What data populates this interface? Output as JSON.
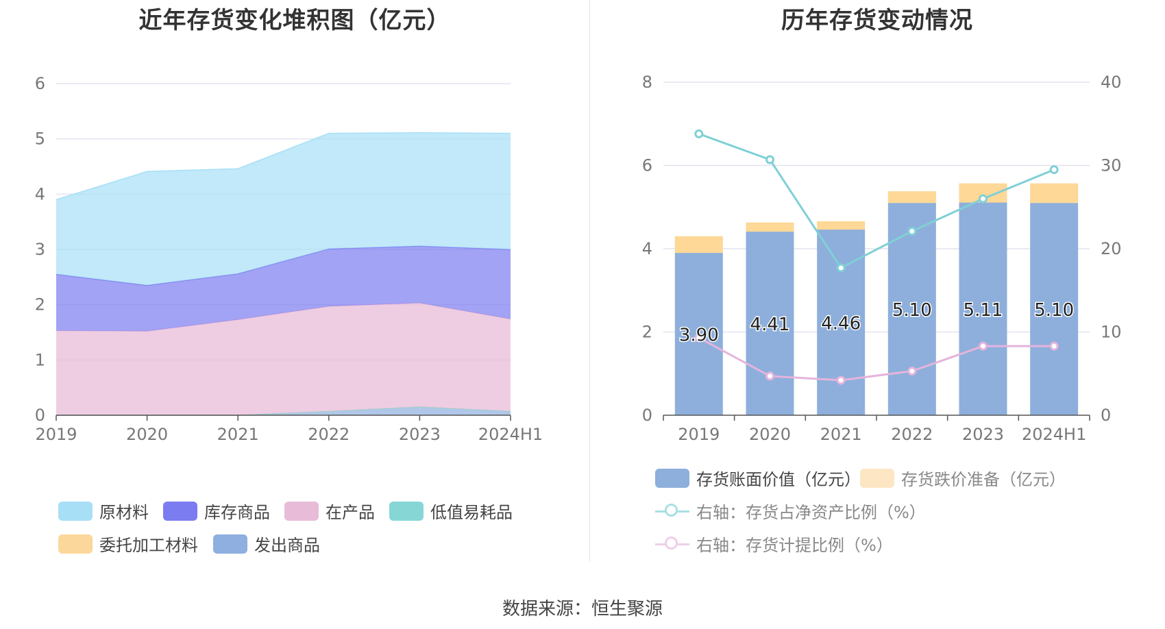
{
  "source_label": "数据来源：恒生聚源",
  "chart_data": [
    {
      "type": "area",
      "title": "近年存货变化堆积图（亿元）",
      "categories": [
        "2019",
        "2020",
        "2021",
        "2022",
        "2023",
        "2024H1"
      ],
      "ylim": [
        0,
        6
      ],
      "yticks": [
        "0",
        "1",
        "2",
        "3",
        "4",
        "5",
        "6"
      ],
      "grid": true,
      "legend_position": "bottom",
      "series": [
        {
          "name": "发出商品",
          "color": "#8eafdf",
          "values": [
            0.0,
            0.0,
            0.0,
            0.07,
            0.15,
            0.07
          ]
        },
        {
          "name": "委托加工材料",
          "color": "#fcd79b",
          "values": [
            0.0,
            0.0,
            0.0,
            0.0,
            0.0,
            0.0
          ]
        },
        {
          "name": "低值易耗品",
          "color": "#86d6d6",
          "values": [
            0.0,
            0.0,
            0.0,
            0.0,
            0.0,
            0.0
          ]
        },
        {
          "name": "在产品",
          "color": "#e8bcd9",
          "values": [
            1.53,
            1.52,
            1.73,
            1.9,
            1.88,
            1.67
          ]
        },
        {
          "name": "库存商品",
          "color": "#7b7cf0",
          "values": [
            1.02,
            0.83,
            0.83,
            1.04,
            1.03,
            1.26
          ]
        },
        {
          "name": "原材料",
          "color": "#a7dff7",
          "values": [
            1.35,
            2.06,
            1.9,
            2.09,
            2.05,
            2.1
          ]
        }
      ],
      "legend_order": [
        "原材料",
        "库存商品",
        "在产品",
        "低值易耗品",
        "委托加工材料",
        "发出商品"
      ]
    },
    {
      "type": "bar",
      "title": "历年存货变动情况",
      "categories": [
        "2019",
        "2020",
        "2021",
        "2022",
        "2023",
        "2024H1"
      ],
      "ylim": [
        0,
        8
      ],
      "yticks": [
        "0",
        "2",
        "4",
        "6",
        "8"
      ],
      "y2lim": [
        0,
        40
      ],
      "y2ticks": [
        "0",
        "10",
        "20",
        "30",
        "40"
      ],
      "grid": true,
      "legend_position": "bottom",
      "bar_series": [
        {
          "name": "存货账面价值（亿元）",
          "color": "#8eafdb",
          "values": [
            3.9,
            4.41,
            4.46,
            5.1,
            5.11,
            5.1
          ],
          "labels": [
            "3.90",
            "4.41",
            "4.46",
            "5.10",
            "5.11",
            "5.10"
          ]
        },
        {
          "name": "存货跌价准备（亿元）",
          "color": "#fdd896",
          "values": [
            0.4,
            0.22,
            0.2,
            0.28,
            0.46,
            0.47
          ]
        }
      ],
      "line_series": [
        {
          "name": "右轴：存货占净资产比例（%）",
          "color": "#7fd0d6",
          "values": [
            33.8,
            30.7,
            17.7,
            22.1,
            26.0,
            29.5
          ]
        },
        {
          "name": "右轴：存货计提比例（%）",
          "color": "#e4b4dc",
          "values": [
            9.3,
            4.7,
            4.2,
            5.3,
            8.3,
            8.3
          ]
        }
      ]
    }
  ]
}
